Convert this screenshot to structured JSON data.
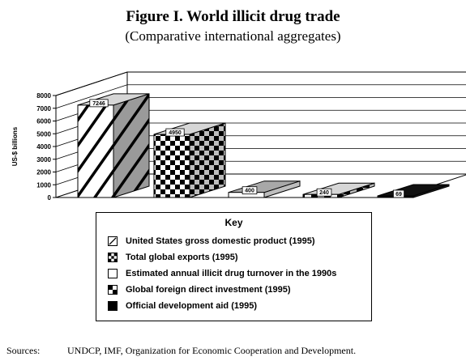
{
  "figure": {
    "title": "Figure I.  World illicit drug trade",
    "subtitle": "(Comparative international aggregates)"
  },
  "chart_data": {
    "type": "bar",
    "ylabel": "US-$ billions",
    "ylim": [
      0,
      8000
    ],
    "yticks": [
      "0",
      "1000",
      "2000",
      "3000",
      "4000",
      "5000",
      "6000",
      "7000",
      "8000"
    ],
    "grid": true,
    "categories": [
      "United States gross domestic product (1995)",
      "Total global exports (1995)",
      "Estimated annual illicit drug turnover in the 1990s",
      "Global foreign direct investment (1995)",
      "Official development aid (1995)"
    ],
    "values": [
      7246,
      4950,
      400,
      240,
      69
    ],
    "data_labels": [
      "7246",
      "4950",
      "400",
      "240",
      "69"
    ],
    "patterns": [
      "diagonal-hatch",
      "checkerboard",
      "white",
      "quad-checker",
      "black"
    ]
  },
  "key": {
    "title": "Key",
    "items": [
      {
        "label": "United States gross domestic product (1995)",
        "pattern": "diagonal-hatch"
      },
      {
        "label": "Total global exports (1995)",
        "pattern": "checkerboard"
      },
      {
        "label": "Estimated annual illicit drug turnover in the 1990s",
        "pattern": "white"
      },
      {
        "label": "Global foreign direct investment (1995)",
        "pattern": "quad-checker"
      },
      {
        "label": "Official development aid (1995)",
        "pattern": "black"
      }
    ]
  },
  "sources": {
    "label": "Sources:",
    "text": "UNDCP, IMF, Organization for Economic Cooperation and Development."
  }
}
